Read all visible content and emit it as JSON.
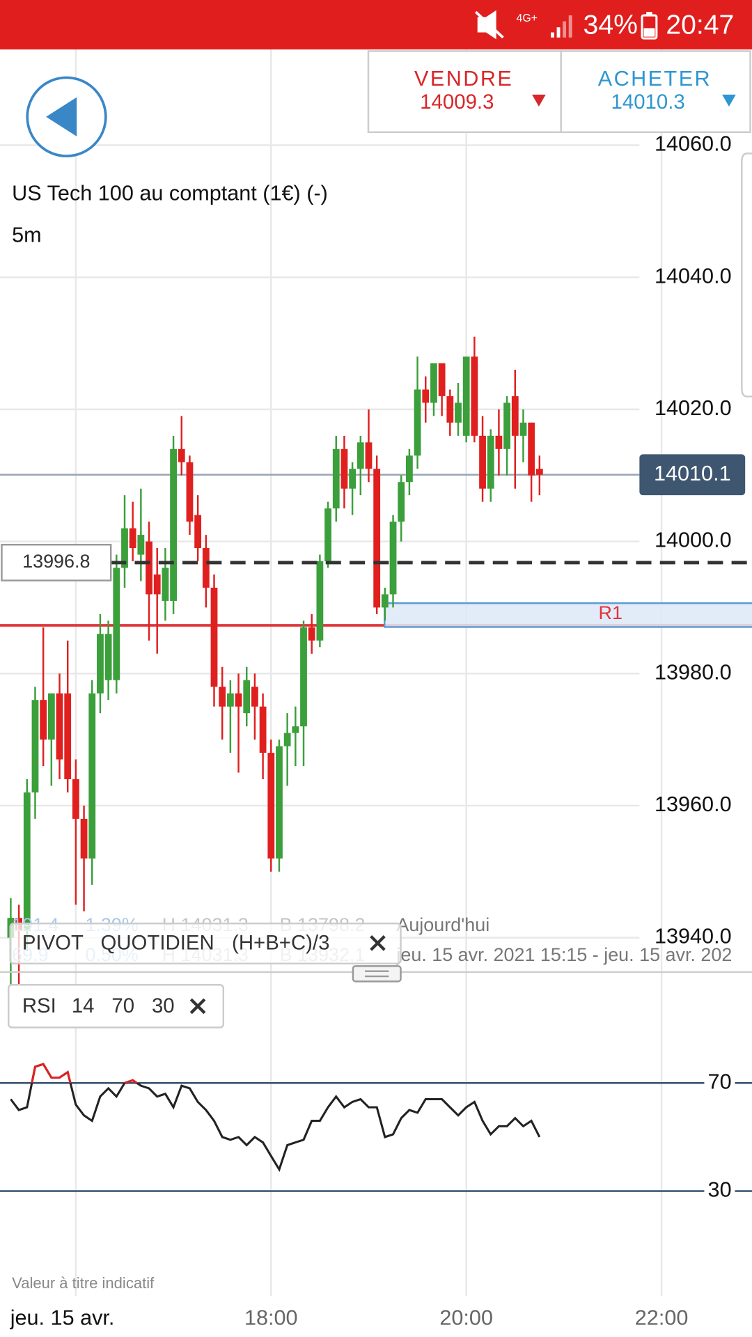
{
  "status_bar": {
    "network": "4G+",
    "battery": "34%",
    "time": "20:47"
  },
  "quote": {
    "sell_label": "VENDRE",
    "sell_price": 14009.3,
    "buy_label": "ACHETER",
    "buy_price": 14010.3
  },
  "instrument": {
    "name": "US Tech 100 au comptant (1€) (-)",
    "timeframe": "5m"
  },
  "legend": {
    "row1": [
      "191.4",
      "1.39%",
      "H 14031.3",
      "B 13798.2",
      "Aujourd'hui"
    ],
    "row2": [
      "69.9",
      "0.50%",
      "H 14031.3",
      "B 13932.1",
      "jeu. 15 avr. 2021 15:15 - jeu. 15 avr. 202"
    ]
  },
  "chips": {
    "pivot": [
      "PIVOT",
      "QUOTIDIEN",
      "(H+B+C)/3"
    ],
    "rsi": [
      "RSI",
      "14",
      "70",
      "30"
    ]
  },
  "disclaimer": "Valeur à titre indicatif",
  "chart_data": [
    {
      "type": "candlestick",
      "x": [
        920,
        925,
        930,
        935,
        940,
        945,
        950,
        955,
        960,
        965,
        970,
        975,
        980,
        985,
        990,
        995,
        1000,
        1005,
        1010,
        1015,
        1020,
        1025,
        1030,
        1035,
        1040,
        1045,
        1050,
        1055,
        1060,
        1065,
        1070,
        1075,
        1080,
        1085,
        1090,
        1095,
        1100,
        1105,
        1110,
        1115,
        1120,
        1125,
        1130,
        1135,
        1140,
        1145,
        1150,
        1155,
        1160,
        1165,
        1170,
        1175,
        1180,
        1185,
        1190,
        1195,
        1200,
        1205,
        1210,
        1215,
        1220,
        1225,
        1230,
        1235,
        1240,
        1245
      ],
      "open": [
        13940,
        13943,
        13941,
        13962,
        13976,
        13970,
        13977,
        13977,
        13964,
        13958,
        13952,
        13977,
        13979,
        13979,
        13996,
        14002,
        13998,
        14000,
        13995,
        13991,
        13991,
        14014,
        14012,
        14004,
        13999,
        13993,
        13978,
        13975,
        13977,
        13974,
        13978,
        13975,
        13968,
        13952,
        13969,
        13971,
        13972,
        13987,
        13985,
        13997,
        14005,
        14014,
        14008,
        14011,
        14015,
        14011,
        13990,
        13992,
        14003,
        14009,
        14013,
        14023,
        14021,
        14027,
        14022,
        14018,
        14016,
        14028,
        14016,
        14008,
        14016,
        14014,
        14022,
        14016,
        14018,
        14011
      ],
      "high": [
        13946,
        13945,
        13964,
        13978,
        13987,
        13977,
        13980,
        13985,
        13967,
        13960,
        13979,
        13989,
        13988,
        13998,
        14007,
        14006,
        14008,
        14003,
        13999,
        13999,
        14016,
        14019,
        14013,
        14007,
        14001,
        13995,
        13981,
        13979,
        13980,
        13981,
        13980,
        13977,
        13970,
        13970,
        13974,
        13975,
        13988,
        13989,
        13998,
        14006,
        14016,
        14016,
        14012,
        14016,
        14020,
        14013,
        13993,
        14004,
        14010,
        14014,
        14028,
        14025,
        14027,
        14027,
        14023,
        14024,
        14028,
        14031,
        14019,
        14017,
        14020,
        14022,
        14026,
        14020,
        14018,
        14013
      ],
      "low": [
        13930,
        13932,
        13938,
        13958,
        13966,
        13963,
        13964,
        13962,
        13945,
        13944,
        13948,
        13974,
        13976,
        13977,
        13993,
        13997,
        13994,
        13985,
        13983,
        13988,
        13989,
        14010,
        14001,
        13997,
        13990,
        13975,
        13970,
        13968,
        13965,
        13972,
        13970,
        13964,
        13950,
        13950,
        13963,
        13966,
        13966,
        13983,
        13984,
        13996,
        14003,
        14005,
        14004,
        14007,
        14009,
        13989,
        13988,
        13990,
        14000,
        14007,
        14011,
        14018,
        14019,
        14019,
        14016,
        14016,
        14015,
        14015,
        14006,
        14006,
        14010,
        14010,
        14008,
        14012,
        14006,
        14007
      ],
      "close": [
        13943,
        13941,
        13962,
        13976,
        13970,
        13977,
        13967,
        13964,
        13958,
        13952,
        13977,
        13986,
        13986,
        13996,
        14002,
        13999,
        14001,
        13992,
        13992,
        13996,
        14014,
        14012,
        14003,
        13999,
        13993,
        13978,
        13975,
        13977,
        13975,
        13979,
        13975,
        13968,
        13952,
        13969,
        13971,
        13972,
        13987,
        13985,
        13997,
        14005,
        14014,
        14008,
        14011,
        14015,
        14011,
        13990,
        13992,
        14003,
        14009,
        14013,
        14023,
        14021,
        14027,
        14022,
        14018,
        14021,
        14028,
        14016,
        14008,
        14016,
        14014,
        14021,
        14016,
        14018,
        14010,
        14010.1
      ],
      "up_color": "#3b9f3b",
      "down_color": "#e0201f",
      "xlim": [
        913.4,
        1375.6
      ],
      "xticks": [
        {
          "value": 960,
          "label": "jeu. 15 avr."
        },
        {
          "value": 1080,
          "label": "18:00"
        },
        {
          "value": 1200,
          "label": "20:00"
        },
        {
          "value": 1320,
          "label": "22:00"
        }
      ],
      "ylim": [
        13934.8,
        14074.5
      ],
      "yticks": [
        {
          "value": 13940,
          "label": "13940.0"
        },
        {
          "value": 13960,
          "label": "13960.0"
        },
        {
          "value": 13980,
          "label": "13980.0"
        },
        {
          "value": 14000,
          "label": "14000.0"
        },
        {
          "value": 14020,
          "label": "14020.0"
        },
        {
          "value": 14040,
          "label": "14040.0"
        },
        {
          "value": 14060,
          "label": "14060.0"
        }
      ],
      "grid": true,
      "last_price": 14010.1,
      "pivot": 13996.8,
      "r1": 13987.3,
      "r1_label": "R1"
    },
    {
      "type": "line",
      "name": "RSI",
      "values": [
        64,
        60,
        61,
        76,
        77,
        72,
        72,
        74,
        62,
        58,
        56,
        65,
        68,
        65,
        70,
        71,
        69,
        68,
        65,
        66,
        61,
        69,
        68,
        63,
        60,
        56,
        50,
        49,
        50,
        47,
        50,
        48,
        43,
        38,
        47,
        48,
        49,
        56,
        56,
        61,
        65,
        61,
        63,
        64,
        61,
        61,
        50,
        51,
        57,
        60,
        59,
        64,
        64,
        64,
        61,
        58,
        61,
        63,
        56,
        51,
        54,
        54,
        57,
        54,
        56,
        50
      ],
      "color": "#222222",
      "overbought_color": "#e0201f",
      "ylim": [
        0,
        100
      ],
      "yticks": [
        70,
        30
      ]
    }
  ]
}
